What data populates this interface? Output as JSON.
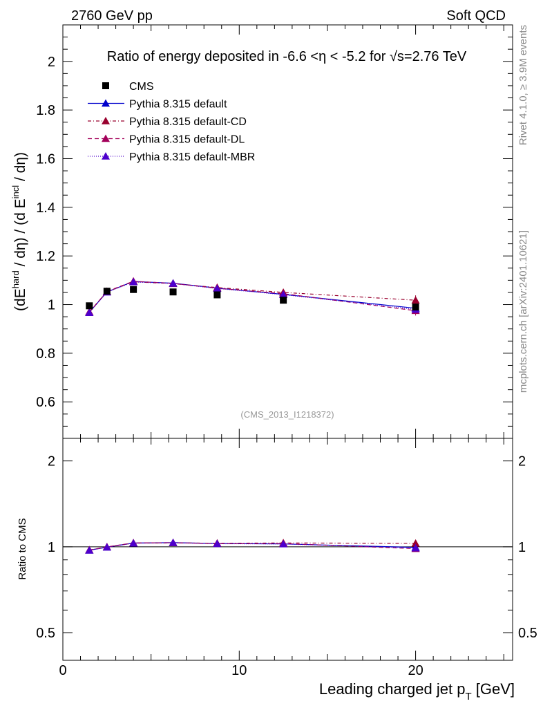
{
  "header": {
    "left": "2760 GeV pp",
    "right": "Soft QCD"
  },
  "side": {
    "rivet": "Rivet 4.1.0, ≥ 3.9M events",
    "mcplots": "mcplots.cern.ch [arXiv:2401.10621]"
  },
  "chart_data": {
    "type": "line",
    "title": "Ratio of energy deposited in -6.6 <η < -5.2 for √s=2.76 TeV",
    "analysis_tag": "(CMS_2013_I1218372)",
    "xlabel": "Leading charged jet p_T [GeV]",
    "ylabel": "(dE^hard / dη) / (d E^incl / dη)",
    "ratio_ylabel": "Ratio to CMS",
    "xlim": [
      0,
      25.5
    ],
    "ylim": [
      0.45,
      2.15
    ],
    "ratio_ylim": [
      0.4,
      2.4
    ],
    "x_ticks": [
      0,
      10,
      20
    ],
    "y_ticks": [
      0.6,
      0.8,
      1,
      1.2,
      1.4,
      1.6,
      1.8,
      2
    ],
    "ratio_ticks": [
      0.5,
      1,
      2
    ],
    "x": [
      1.5,
      2.5,
      4.0,
      6.25,
      8.75,
      12.5,
      20.0
    ],
    "data": {
      "name": "CMS",
      "values": [
        0.995,
        1.055,
        1.062,
        1.052,
        1.04,
        1.018,
        0.99
      ],
      "errors": [
        0.005,
        0.005,
        0.005,
        0.005,
        0.005,
        0.005,
        0.01
      ],
      "color": "#000000"
    },
    "series": [
      {
        "name": "Pythia 8.315 default",
        "color": "#0000cc",
        "dash": "",
        "values": [
          0.968,
          1.052,
          1.095,
          1.088,
          1.068,
          1.042,
          0.985
        ],
        "errors": [
          0.005,
          0.005,
          0.005,
          0.005,
          0.005,
          0.008,
          0.015
        ]
      },
      {
        "name": "Pythia 8.315 default-CD",
        "color": "#99002e",
        "dash": "5,3,1,3",
        "values": [
          0.97,
          1.053,
          1.094,
          1.086,
          1.07,
          1.05,
          1.018
        ],
        "errors": [
          0.005,
          0.005,
          0.005,
          0.005,
          0.005,
          0.008,
          0.02
        ]
      },
      {
        "name": "Pythia 8.315 default-DL",
        "color": "#a3005a",
        "dash": "6,4",
        "values": [
          0.969,
          1.054,
          1.096,
          1.087,
          1.067,
          1.045,
          0.975
        ],
        "errors": [
          0.005,
          0.005,
          0.005,
          0.005,
          0.005,
          0.008,
          0.02
        ]
      },
      {
        "name": "Pythia 8.315 default-MBR",
        "color": "#4d00cc",
        "dash": "1,2",
        "values": [
          0.967,
          1.051,
          1.093,
          1.087,
          1.066,
          1.041,
          0.98
        ],
        "errors": [
          0.005,
          0.005,
          0.005,
          0.005,
          0.005,
          0.008,
          0.015
        ]
      }
    ],
    "legend_position": "top-left"
  }
}
